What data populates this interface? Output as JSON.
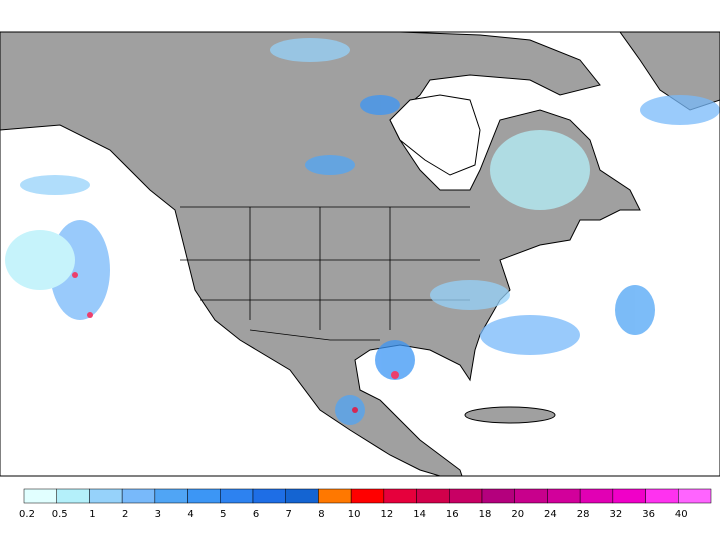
{
  "colorbar": {
    "labels": [
      0.2,
      0.5,
      1,
      2,
      3,
      4,
      5,
      6,
      7,
      8,
      10,
      12,
      14,
      16,
      18,
      20,
      24,
      28,
      32,
      36,
      40
    ],
    "colors": [
      "#e1ffff",
      "#b4f0fa",
      "#96d2fa",
      "#78b9fa",
      "#50a5f5",
      "#3c96f5",
      "#2d82f0",
      "#1e6ee6",
      "#1464d2",
      "#ff7800",
      "#ff0000",
      "#e6003c",
      "#d2004b",
      "#c80064",
      "#b4007d",
      "#c8008c",
      "#d2009b",
      "#e100b4",
      "#f000c8",
      "#ff32f0",
      "#ff64ff"
    ]
  }
}
